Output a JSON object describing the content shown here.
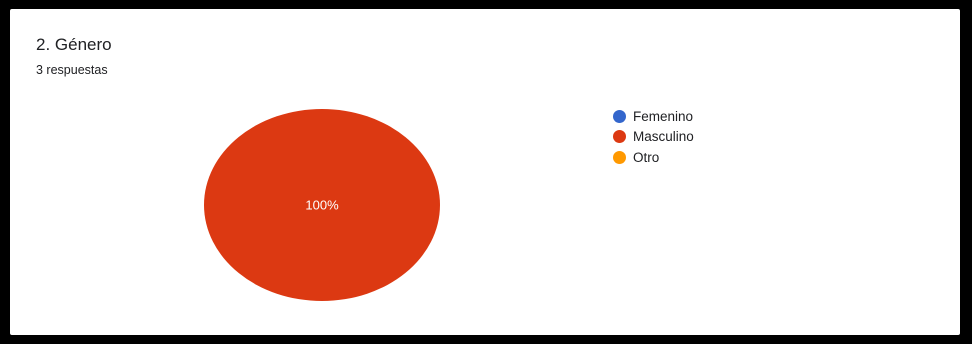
{
  "question": {
    "title": "2. Género",
    "responses": "3 respuestas"
  },
  "chart_data": {
    "type": "pie",
    "title": "2. Género",
    "subtitle": "3 respuestas",
    "categories": [
      "Femenino",
      "Masculino",
      "Otro"
    ],
    "values": [
      0,
      100,
      0
    ],
    "colors": [
      "#3366cc",
      "#dc3912",
      "#ff9900"
    ],
    "data_labels": [
      "",
      "100%",
      ""
    ],
    "legend_position": "right"
  }
}
